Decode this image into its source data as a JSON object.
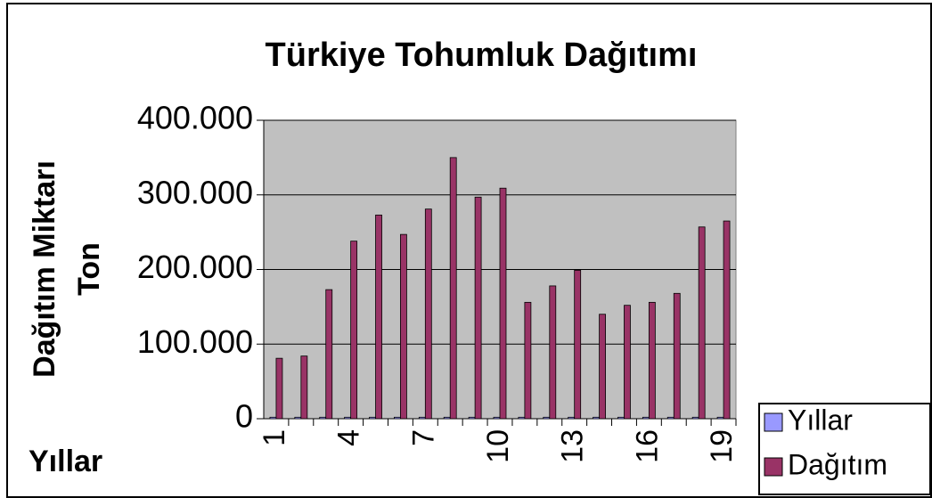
{
  "chart_data": {
    "type": "bar",
    "title": "Türkiye Tohumluk Dağıtımı",
    "ylabel": [
      "Dağıtım Miktarı",
      "Ton"
    ],
    "xlabel": "Yıllar",
    "categories": [
      1,
      null,
      null,
      4,
      null,
      null,
      7,
      null,
      null,
      10,
      null,
      null,
      13,
      null,
      null,
      16,
      null,
      null,
      19
    ],
    "series": [
      {
        "name": "Yıllar",
        "color": "#9999ff",
        "values": [
          2000,
          2000,
          2000,
          2000,
          2000,
          2000,
          2000,
          2000,
          2000,
          2000,
          2000,
          2000,
          2000,
          2000,
          2000,
          2000,
          2000,
          2000,
          2000
        ]
      },
      {
        "name": "Dağıtım",
        "color": "#993366",
        "values": [
          81000,
          84000,
          173000,
          238000,
          273000,
          247000,
          281000,
          350000,
          297000,
          309000,
          156000,
          178000,
          199000,
          140000,
          152000,
          156000,
          168000,
          257000,
          265000
        ]
      }
    ],
    "ylim": [
      0,
      400000
    ],
    "yticks": [
      0,
      {
        "value": 100000,
        "label": "100.000"
      },
      {
        "value": 200000,
        "label": "200.000"
      },
      {
        "value": 300000,
        "label": "300.000"
      },
      {
        "value": 400000,
        "label": "400.000"
      }
    ],
    "grid": true,
    "legend": "bottom-right"
  }
}
